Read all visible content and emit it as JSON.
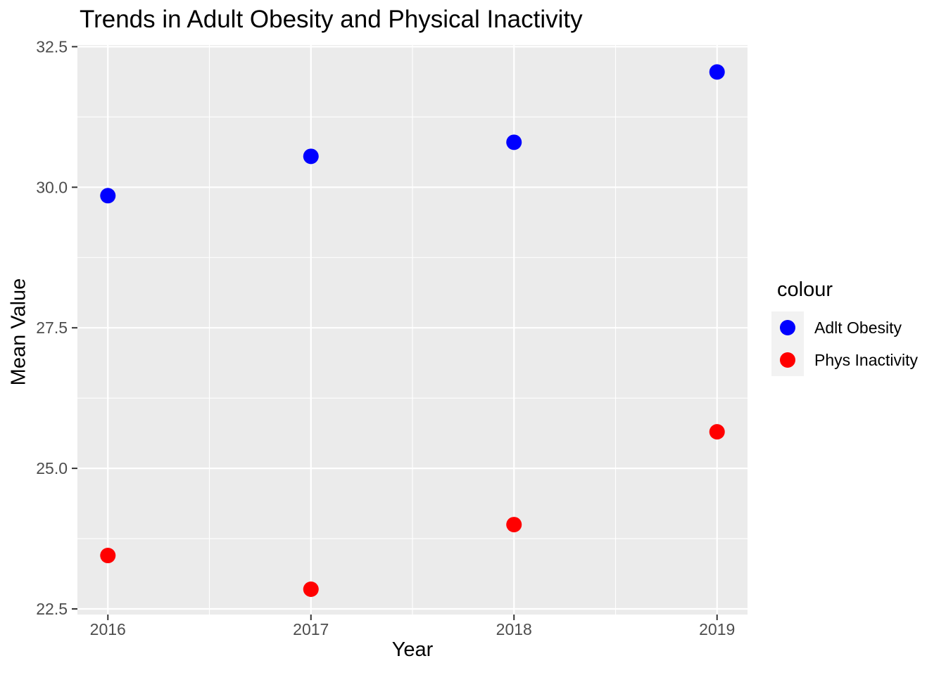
{
  "chart_data": {
    "type": "scatter",
    "title": "Trends in Adult Obesity and Physical Inactivity",
    "xlabel": "Year",
    "ylabel": "Mean Value",
    "legend": {
      "title": "colour",
      "position": "right"
    },
    "x": [
      2016,
      2017,
      2018,
      2019
    ],
    "series": [
      {
        "name": "Adlt Obesity",
        "color": "#0000ff",
        "values": [
          29.85,
          30.55,
          30.8,
          32.05
        ]
      },
      {
        "name": "Phys Inactivity",
        "color": "#ff0000",
        "values": [
          23.45,
          22.85,
          24.0,
          25.65
        ]
      }
    ],
    "axes": {
      "x_ticks": [
        2016,
        2017,
        2018,
        2019
      ],
      "x_tick_labels": [
        "2016",
        "2017",
        "2018",
        "2019"
      ],
      "y_ticks": [
        22.5,
        25.0,
        27.5,
        30.0,
        32.5
      ],
      "y_tick_labels": [
        "22.5",
        "25.0",
        "27.5",
        "30.0",
        "32.5"
      ],
      "xlim": [
        2015.85,
        2019.15
      ],
      "ylim": [
        22.4,
        32.53
      ],
      "x_minor_gridlines": [
        2016.5,
        2017.5,
        2018.5
      ],
      "y_minor_gridlines": [
        23.75,
        26.25,
        28.75,
        31.25
      ],
      "grid": "major+minor"
    },
    "theme": {
      "panel_bg": "#ebebeb",
      "grid_color": "#ffffff",
      "tick_label_color": "#4d4d4d",
      "tick_mark_color": "#333333",
      "text_color": "#000000",
      "legend_key_bg": "#f2f2f2",
      "page_bg": "#ffffff"
    }
  }
}
